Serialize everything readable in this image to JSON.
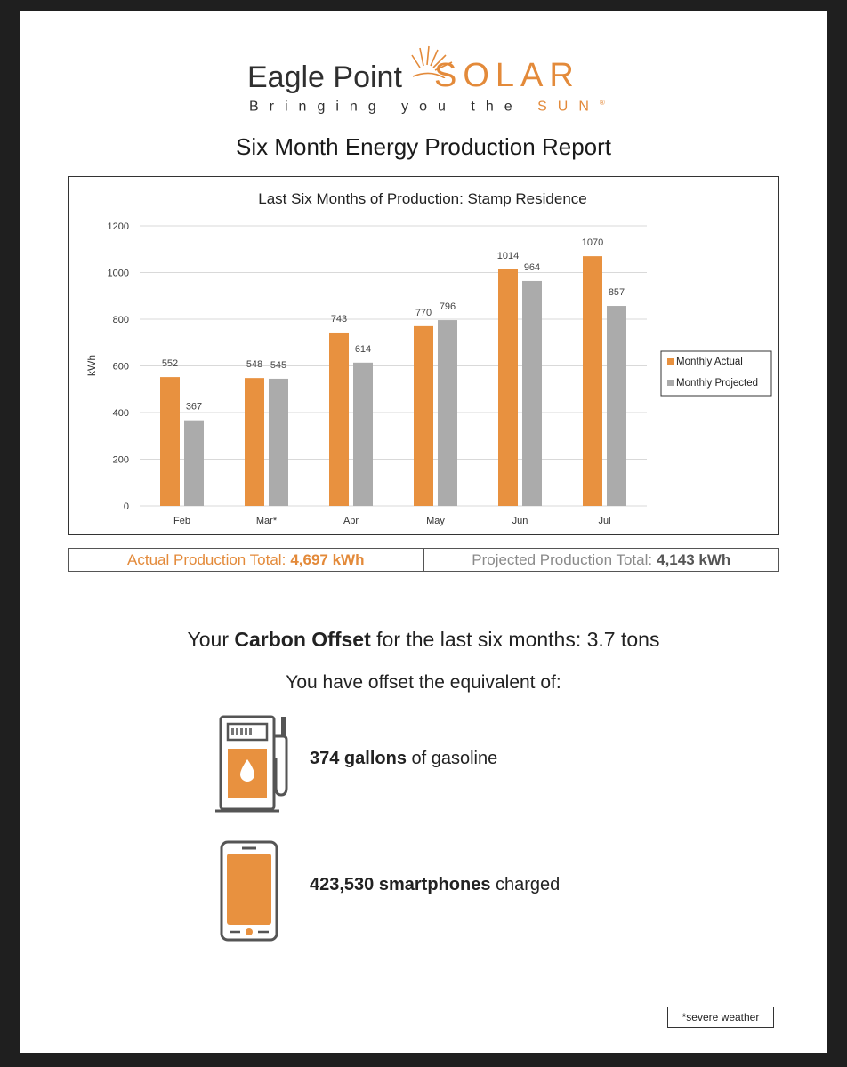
{
  "brand": {
    "name_left": "Eagle Point",
    "name_right": "SOLAR",
    "tagline_main": "Bringing you the",
    "tagline_accent": "SUN",
    "registered_mark": "®"
  },
  "report_title": "Six Month Energy Production Report",
  "chart_data": {
    "type": "bar",
    "title": "Last Six Months of Production: Stamp Residence",
    "ylabel": "kWh",
    "xlabel": "",
    "categories": [
      "Feb",
      "Mar*",
      "Apr",
      "May",
      "Jun",
      "Jul"
    ],
    "series": [
      {
        "name": "Monthly Actual",
        "values": [
          552,
          548,
          743,
          770,
          1014,
          1070
        ],
        "color": "#e8913f"
      },
      {
        "name": "Monthly Projected",
        "values": [
          367,
          545,
          614,
          796,
          964,
          857
        ],
        "color": "#ababab"
      }
    ],
    "ylim": [
      0,
      1200
    ],
    "yticks": [
      0,
      200,
      400,
      600,
      800,
      1000,
      1200
    ],
    "grid": true,
    "legend": "right"
  },
  "totals": {
    "actual_label": "Actual Production Total:",
    "actual_value": "4,697 kWh",
    "projected_label": "Projected Production Total:",
    "projected_value": "4,143 kWh"
  },
  "carbon": {
    "prefix": "Your",
    "strong": "Carbon Offset",
    "suffix": "for the last six months: 3.7 tons"
  },
  "equivalent_intro": "You have offset the equivalent of:",
  "equivalents": [
    {
      "icon": "gas-pump-icon",
      "strong": "374 gallons",
      "rest": "of gasoline"
    },
    {
      "icon": "smartphone-icon",
      "strong": "423,530 smartphones",
      "rest": "charged"
    }
  ],
  "footnote": "*severe weather",
  "colors": {
    "accent": "#e38a3a",
    "actual_bar": "#e8913f",
    "projected_bar": "#ababab"
  }
}
